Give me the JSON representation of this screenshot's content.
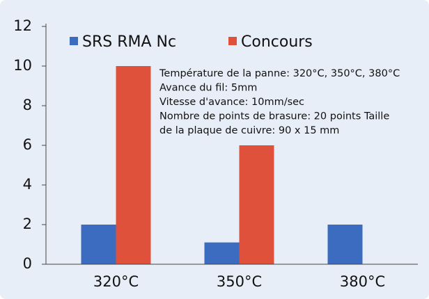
{
  "chart_data": {
    "type": "bar",
    "categories": [
      "320°C",
      "350°C",
      "380°C"
    ],
    "series": [
      {
        "name": "SRS RMA Nc",
        "color": "#3b6cc0",
        "values": [
          2,
          1.1,
          2
        ]
      },
      {
        "name": "Concours",
        "color": "#e0513b",
        "values": [
          10,
          6,
          0
        ]
      }
    ],
    "ylim": [
      0,
      12
    ],
    "yticks": [
      0,
      2,
      4,
      6,
      8,
      10,
      12
    ],
    "grid": false,
    "legend": "top",
    "annotation": [
      "Température de la panne: 320°C, 350°C, 380°C",
      "Avance du fil: 5mm",
      "Vitesse d'avance: 10mm/sec",
      "Nombre de points de brasure: 20 points Taille",
      "de la plaque de cuivre: 90 x 15 mm"
    ]
  }
}
